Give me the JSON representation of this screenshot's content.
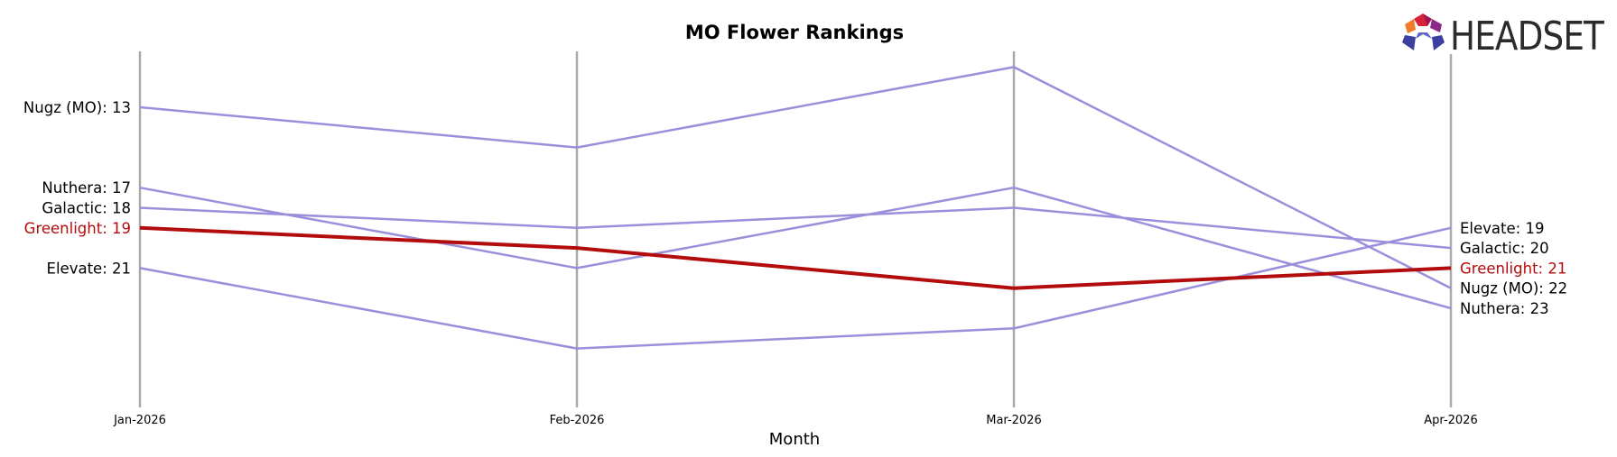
{
  "chart_data": {
    "type": "line",
    "title": "MO Flower Rankings",
    "xlabel": "Month",
    "ylabel": "",
    "y_inverted": true,
    "categories": [
      "Jan-2026",
      "Feb-2026",
      "Mar-2026",
      "Apr-2026"
    ],
    "series": [
      {
        "name": "Nugz (MO)",
        "values": [
          13,
          15,
          11,
          22
        ],
        "color": "#9b8fdb",
        "highlight": false
      },
      {
        "name": "Nuthera",
        "values": [
          17,
          21,
          17,
          23
        ],
        "color": "#9b8fdb",
        "highlight": false
      },
      {
        "name": "Galactic",
        "values": [
          18,
          19,
          18,
          20
        ],
        "color": "#9b8fdb",
        "highlight": false
      },
      {
        "name": "Elevate",
        "values": [
          21,
          25,
          24,
          19
        ],
        "color": "#9b8fdb",
        "highlight": false
      },
      {
        "name": "Greenlight",
        "values": [
          19,
          20,
          22,
          21
        ],
        "color": "#b30c0c",
        "highlight": true
      }
    ],
    "left_labels": [
      {
        "series": "Nugz (MO)",
        "text": "Nugz (MO): 13"
      },
      {
        "series": "Nuthera",
        "text": "Nuthera: 17"
      },
      {
        "series": "Galactic",
        "text": "Galactic: 18"
      },
      {
        "series": "Greenlight",
        "text": "Greenlight: 19"
      },
      {
        "series": "Elevate",
        "text": "Elevate: 21"
      }
    ],
    "right_labels": [
      {
        "series": "Elevate",
        "text": "Elevate: 19"
      },
      {
        "series": "Galactic",
        "text": "Galactic: 20"
      },
      {
        "series": "Greenlight",
        "text": "Greenlight: 21"
      },
      {
        "series": "Nugz (MO)",
        "text": "Nugz (MO): 22"
      },
      {
        "series": "Nuthera",
        "text": "Nuthera: 23"
      }
    ],
    "grid": "vertical lines at each month",
    "colors": {
      "highlight": "#b30c0c",
      "other": "#9b8fdb",
      "axis": "#aaaaaa",
      "label": "#000000"
    }
  },
  "logo": {
    "text": "HEADSET"
  }
}
